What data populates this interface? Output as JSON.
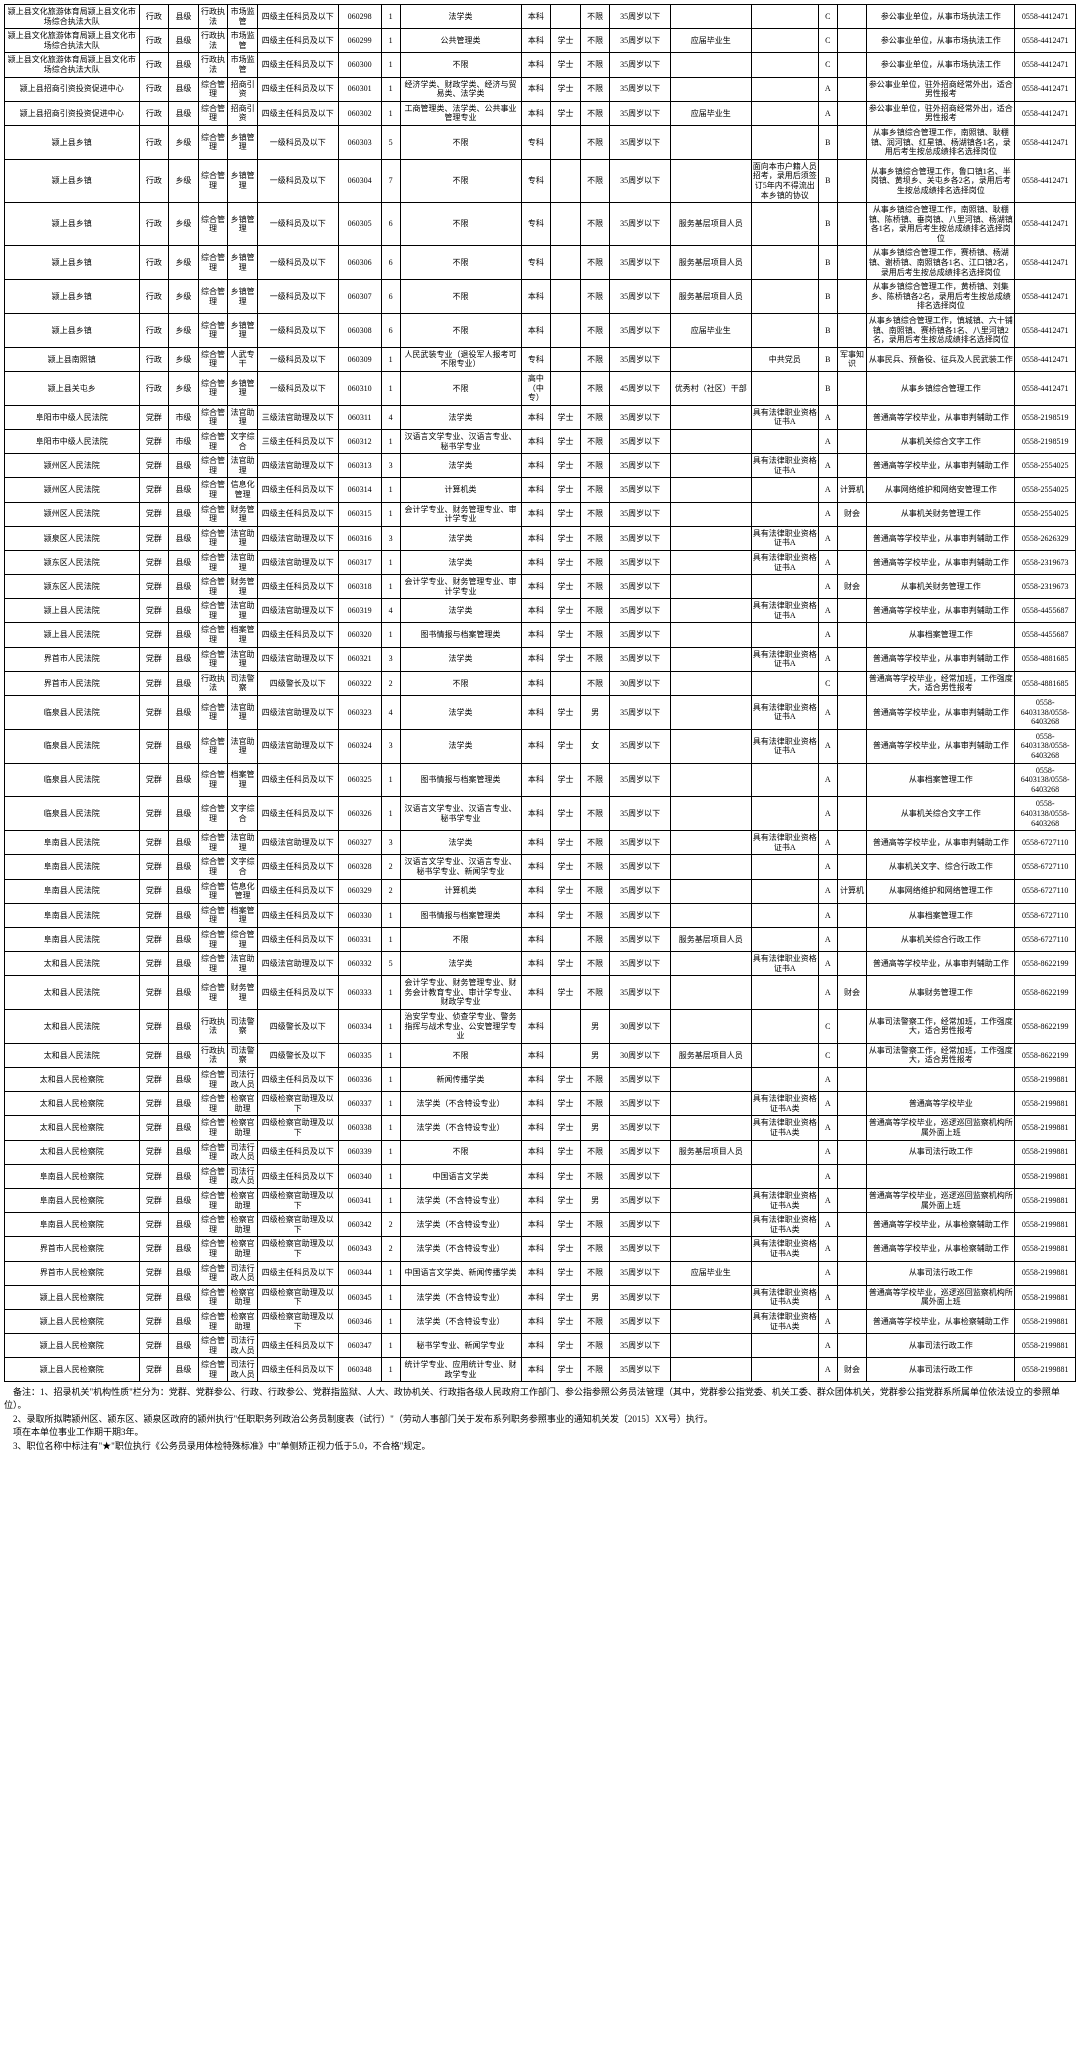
{
  "cols": [
    "c0",
    "c1",
    "c2",
    "c3",
    "c4",
    "c5",
    "c6",
    "c7",
    "c8",
    "c9",
    "c10",
    "c11",
    "c12",
    "c13",
    "c14",
    "c15",
    "c16",
    "c17",
    "c18"
  ],
  "rows": [
    [
      "颍上县文化旅游体育局颍上县文化市场综合执法大队",
      "行政",
      "县级",
      "行政执法",
      "市场监管",
      "四级主任科员及以下",
      "060298",
      "1",
      "法学类",
      "本科",
      "",
      "不限",
      "35周岁以下",
      "",
      "",
      "C",
      "",
      "参公事业单位，从事市场执法工作",
      "0558-4412471"
    ],
    [
      "颍上县文化旅游体育局颍上县文化市场综合执法大队",
      "行政",
      "县级",
      "行政执法",
      "市场监管",
      "四级主任科员及以下",
      "060299",
      "1",
      "公共管理类",
      "本科",
      "学士",
      "不限",
      "35周岁以下",
      "应届毕业生",
      "",
      "C",
      "",
      "参公事业单位，从事市场执法工作",
      "0558-4412471"
    ],
    [
      "颍上县文化旅游体育局颍上县文化市场综合执法大队",
      "行政",
      "县级",
      "行政执法",
      "市场监管",
      "四级主任科员及以下",
      "060300",
      "1",
      "不限",
      "本科",
      "学士",
      "不限",
      "35周岁以下",
      "",
      "",
      "C",
      "",
      "参公事业单位，从事市场执法工作",
      "0558-4412471"
    ],
    [
      "颍上县招商引资投资促进中心",
      "行政",
      "县级",
      "综合管理",
      "招商引资",
      "四级主任科员及以下",
      "060301",
      "1",
      "经济学类、财政学类、经济与贸易类、法学类",
      "本科",
      "学士",
      "不限",
      "35周岁以下",
      "",
      "",
      "A",
      "",
      "参公事业单位，驻外招商经常外出，适合男性报考",
      "0558-4412471"
    ],
    [
      "颍上县招商引资投资促进中心",
      "行政",
      "县级",
      "综合管理",
      "招商引资",
      "四级主任科员及以下",
      "060302",
      "1",
      "工商管理类、法学类、公共事业管理专业",
      "本科",
      "学士",
      "不限",
      "35周岁以下",
      "应届毕业生",
      "",
      "A",
      "",
      "参公事业单位，驻外招商经常外出，适合男性报考",
      "0558-4412471"
    ],
    [
      "颍上县乡镇",
      "行政",
      "乡级",
      "综合管理",
      "乡镇管理",
      "一级科员及以下",
      "060303",
      "5",
      "不限",
      "专科",
      "",
      "不限",
      "35周岁以下",
      "",
      "",
      "B",
      "",
      "从事乡镇综合管理工作，南照镇、耿棚镇、润河镇、红星镇、杨湖镇各1名，录用后考生按总成绩排名选择岗位",
      "0558-4412471"
    ],
    [
      "颍上县乡镇",
      "行政",
      "乡级",
      "综合管理",
      "乡镇管理",
      "一级科员及以下",
      "060304",
      "7",
      "不限",
      "专科",
      "",
      "不限",
      "35周岁以下",
      "",
      "面向本市户籍人员招考，录用后须签订5年内不得流出本乡镇的协议",
      "B",
      "",
      "从事乡镇综合管理工作，鲁口镇1名、半岗镇、黄坝乡、关屯乡各2名，录用后考生按总成绩排名选择岗位",
      "0558-4412471"
    ],
    [
      "颍上县乡镇",
      "行政",
      "乡级",
      "综合管理",
      "乡镇管理",
      "一级科员及以下",
      "060305",
      "6",
      "不限",
      "专科",
      "",
      "不限",
      "35周岁以下",
      "服务基层项目人员",
      "",
      "B",
      "",
      "从事乡镇综合管理工作，南照镇、耿棚镇、陈桥镇、垂岗镇、八里河镇、杨湖镇各1名，录用后考生按总成绩排名选择岗位",
      "0558-4412471"
    ],
    [
      "颍上县乡镇",
      "行政",
      "乡级",
      "综合管理",
      "乡镇管理",
      "一级科员及以下",
      "060306",
      "6",
      "不限",
      "专科",
      "",
      "不限",
      "35周岁以下",
      "服务基层项目人员",
      "",
      "B",
      "",
      "从事乡镇综合管理工作，赛桥镇、杨湖镇、谢桥镇、南照镇各1名、江口镇2名，录用后考生按总成绩排名选择岗位",
      "0558-4412471"
    ],
    [
      "颍上县乡镇",
      "行政",
      "乡级",
      "综合管理",
      "乡镇管理",
      "一级科员及以下",
      "060307",
      "6",
      "不限",
      "本科",
      "",
      "不限",
      "35周岁以下",
      "服务基层项目人员",
      "",
      "B",
      "",
      "从事乡镇综合管理工作，黄桥镇、刘集乡、陈桥镇各2名，录用后考生按总成绩排名选择岗位",
      "0558-4412471"
    ],
    [
      "颍上县乡镇",
      "行政",
      "乡级",
      "综合管理",
      "乡镇管理",
      "一级科员及以下",
      "060308",
      "6",
      "不限",
      "本科",
      "",
      "不限",
      "35周岁以下",
      "应届毕业生",
      "",
      "B",
      "",
      "从事乡镇综合管理工作，慎城镇、六十铺镇、南照镇、赛桥镇各1名、八里河镇2名，录用后考生按总成绩排名选择岗位",
      "0558-4412471"
    ],
    [
      "颍上县南照镇",
      "行政",
      "乡级",
      "综合管理",
      "人武专干",
      "一级科员及以下",
      "060309",
      "1",
      "人民武装专业（退役军人报考可不限专业）",
      "专科",
      "",
      "不限",
      "35周岁以下",
      "",
      "中共党员",
      "B",
      "军事知识",
      "从事民兵、预备役、征兵及人民武装工作",
      "0558-4412471"
    ],
    [
      "颍上县关屯乡",
      "行政",
      "乡级",
      "综合管理",
      "乡镇管理",
      "一级科员及以下",
      "060310",
      "1",
      "不限",
      "高中（中专）",
      "",
      "不限",
      "45周岁以下",
      "优秀村（社区）干部",
      "",
      "B",
      "",
      "从事乡镇综合管理工作",
      "0558-4412471"
    ],
    [
      "阜阳市中级人民法院",
      "党群",
      "市级",
      "综合管理",
      "法官助理",
      "三级法官助理及以下",
      "060311",
      "4",
      "法学类",
      "本科",
      "学士",
      "不限",
      "35周岁以下",
      "",
      "具有法律职业资格证书A",
      "A",
      "",
      "普通高等学校毕业，从事审判辅助工作",
      "0558-2198519"
    ],
    [
      "阜阳市中级人民法院",
      "党群",
      "市级",
      "综合管理",
      "文字综合",
      "三级主任科员及以下",
      "060312",
      "1",
      "汉语言文学专业、汉语言专业、秘书学专业",
      "本科",
      "学士",
      "不限",
      "35周岁以下",
      "",
      "",
      "A",
      "",
      "从事机关综合文字工作",
      "0558-2198519"
    ],
    [
      "颍州区人民法院",
      "党群",
      "县级",
      "综合管理",
      "法官助理",
      "四级法官助理及以下",
      "060313",
      "3",
      "法学类",
      "本科",
      "学士",
      "不限",
      "35周岁以下",
      "",
      "具有法律职业资格证书A",
      "A",
      "",
      "普通高等学校毕业，从事审判辅助工作",
      "0558-2554025"
    ],
    [
      "颍州区人民法院",
      "党群",
      "县级",
      "综合管理",
      "信息化管理",
      "四级主任科员及以下",
      "060314",
      "1",
      "计算机类",
      "本科",
      "学士",
      "不限",
      "35周岁以下",
      "",
      "",
      "A",
      "计算机",
      "从事网络维护和网络安管理工作",
      "0558-2554025"
    ],
    [
      "颍州区人民法院",
      "党群",
      "县级",
      "综合管理",
      "财务管理",
      "四级主任科员及以下",
      "060315",
      "1",
      "会计学专业、财务管理专业、审计学专业",
      "本科",
      "学士",
      "不限",
      "35周岁以下",
      "",
      "",
      "A",
      "财会",
      "从事机关财务管理工作",
      "0558-2554025"
    ],
    [
      "颍泉区人民法院",
      "党群",
      "县级",
      "综合管理",
      "法官助理",
      "四级法官助理及以下",
      "060316",
      "3",
      "法学类",
      "本科",
      "学士",
      "不限",
      "35周岁以下",
      "",
      "具有法律职业资格证书A",
      "A",
      "",
      "普通高等学校毕业，从事审判辅助工作",
      "0558-2626329"
    ],
    [
      "颍东区人民法院",
      "党群",
      "县级",
      "综合管理",
      "法官助理",
      "四级法官助理及以下",
      "060317",
      "1",
      "法学类",
      "本科",
      "学士",
      "不限",
      "35周岁以下",
      "",
      "具有法律职业资格证书A",
      "A",
      "",
      "普通高等学校毕业，从事审判辅助工作",
      "0558-2319673"
    ],
    [
      "颍东区人民法院",
      "党群",
      "县级",
      "综合管理",
      "财务管理",
      "四级主任科员及以下",
      "060318",
      "1",
      "会计学专业、财务管理专业、审计学专业",
      "本科",
      "学士",
      "不限",
      "35周岁以下",
      "",
      "",
      "A",
      "财会",
      "从事机关财务管理工作",
      "0558-2319673"
    ],
    [
      "颍上县人民法院",
      "党群",
      "县级",
      "综合管理",
      "法官助理",
      "四级法官助理及以下",
      "060319",
      "4",
      "法学类",
      "本科",
      "学士",
      "不限",
      "35周岁以下",
      "",
      "具有法律职业资格证书A",
      "A",
      "",
      "普通高等学校毕业，从事审判辅助工作",
      "0558-4455687"
    ],
    [
      "颍上县人民法院",
      "党群",
      "县级",
      "综合管理",
      "档案管理",
      "四级主任科员及以下",
      "060320",
      "1",
      "图书情报与档案管理类",
      "本科",
      "学士",
      "不限",
      "35周岁以下",
      "",
      "",
      "A",
      "",
      "从事档案管理工作",
      "0558-4455687"
    ],
    [
      "界首市人民法院",
      "党群",
      "县级",
      "综合管理",
      "法官助理",
      "四级法官助理及以下",
      "060321",
      "3",
      "法学类",
      "本科",
      "学士",
      "不限",
      "35周岁以下",
      "",
      "具有法律职业资格证书A",
      "A",
      "",
      "普通高等学校毕业，从事审判辅助工作",
      "0558-4881685"
    ],
    [
      "界首市人民法院",
      "党群",
      "县级",
      "行政执法",
      "司法警察",
      "四级警长及以下",
      "060322",
      "2",
      "不限",
      "本科",
      "",
      "不限",
      "30周岁以下",
      "",
      "",
      "C",
      "",
      "普通高等学校毕业，经常加班，工作强度大，适合男性报考",
      "0558-4881685"
    ],
    [
      "临泉县人民法院",
      "党群",
      "县级",
      "综合管理",
      "法官助理",
      "四级法官助理及以下",
      "060323",
      "4",
      "法学类",
      "本科",
      "学士",
      "男",
      "35周岁以下",
      "",
      "具有法律职业资格证书A",
      "A",
      "",
      "普通高等学校毕业，从事审判辅助工作",
      "0558-6403138/0558-6403268"
    ],
    [
      "临泉县人民法院",
      "党群",
      "县级",
      "综合管理",
      "法官助理",
      "四级法官助理及以下",
      "060324",
      "3",
      "法学类",
      "本科",
      "学士",
      "女",
      "35周岁以下",
      "",
      "具有法律职业资格证书A",
      "A",
      "",
      "普通高等学校毕业，从事审判辅助工作",
      "0558-6403138/0558-6403268"
    ],
    [
      "临泉县人民法院",
      "党群",
      "县级",
      "综合管理",
      "档案管理",
      "四级主任科员及以下",
      "060325",
      "1",
      "图书情报与档案管理类",
      "本科",
      "学士",
      "不限",
      "35周岁以下",
      "",
      "",
      "A",
      "",
      "从事档案管理工作",
      "0558-6403138/0558-6403268"
    ],
    [
      "临泉县人民法院",
      "党群",
      "县级",
      "综合管理",
      "文字综合",
      "四级主任科员及以下",
      "060326",
      "1",
      "汉语言文学专业、汉语言专业、秘书学专业",
      "本科",
      "学士",
      "不限",
      "35周岁以下",
      "",
      "",
      "A",
      "",
      "从事机关综合文字工作",
      "0558-6403138/0558-6403268"
    ],
    [
      "阜南县人民法院",
      "党群",
      "县级",
      "综合管理",
      "法官助理",
      "四级法官助理及以下",
      "060327",
      "3",
      "法学类",
      "本科",
      "学士",
      "不限",
      "35周岁以下",
      "",
      "具有法律职业资格证书A",
      "A",
      "",
      "普通高等学校毕业，从事审判辅助工作",
      "0558-6727110"
    ],
    [
      "阜南县人民法院",
      "党群",
      "县级",
      "综合管理",
      "文字综合",
      "四级主任科员及以下",
      "060328",
      "2",
      "汉语言文学专业、汉语言专业、秘书学专业、新闻学专业",
      "本科",
      "学士",
      "不限",
      "35周岁以下",
      "",
      "",
      "A",
      "",
      "从事机关文字、综合行政工作",
      "0558-6727110"
    ],
    [
      "阜南县人民法院",
      "党群",
      "县级",
      "综合管理",
      "信息化管理",
      "四级主任科员及以下",
      "060329",
      "2",
      "计算机类",
      "本科",
      "学士",
      "不限",
      "35周岁以下",
      "",
      "",
      "A",
      "计算机",
      "从事网络维护和网络管理工作",
      "0558-6727110"
    ],
    [
      "阜南县人民法院",
      "党群",
      "县级",
      "综合管理",
      "档案管理",
      "四级主任科员及以下",
      "060330",
      "1",
      "图书情报与档案管理类",
      "本科",
      "学士",
      "不限",
      "35周岁以下",
      "",
      "",
      "A",
      "",
      "从事档案管理工作",
      "0558-6727110"
    ],
    [
      "阜南县人民法院",
      "党群",
      "县级",
      "综合管理",
      "综合管理",
      "四级主任科员及以下",
      "060331",
      "1",
      "不限",
      "本科",
      "",
      "不限",
      "35周岁以下",
      "服务基层项目人员",
      "",
      "A",
      "",
      "从事机关综合行政工作",
      "0558-6727110"
    ],
    [
      "太和县人民法院",
      "党群",
      "县级",
      "综合管理",
      "法官助理",
      "四级法官助理及以下",
      "060332",
      "5",
      "法学类",
      "本科",
      "学士",
      "不限",
      "35周岁以下",
      "",
      "具有法律职业资格证书A",
      "A",
      "",
      "普通高等学校毕业，从事审判辅助工作",
      "0558-8622199"
    ],
    [
      "太和县人民法院",
      "党群",
      "县级",
      "综合管理",
      "财务管理",
      "四级主任科员及以下",
      "060333",
      "1",
      "会计学专业、财务管理专业、财务会计教育专业、审计学专业、财政学专业",
      "本科",
      "学士",
      "不限",
      "35周岁以下",
      "",
      "",
      "A",
      "财会",
      "从事财务管理工作",
      "0558-8622199"
    ],
    [
      "太和县人民法院",
      "党群",
      "县级",
      "行政执法",
      "司法警察",
      "四级警长及以下",
      "060334",
      "1",
      "治安学专业、侦查学专业、警务指挥与战术专业、公安管理学专业",
      "本科",
      "",
      "男",
      "30周岁以下",
      "",
      "",
      "C",
      "",
      "从事司法警察工作，经常加班，工作强度大，适合男性报考",
      "0558-8622199"
    ],
    [
      "太和县人民法院",
      "党群",
      "县级",
      "行政执法",
      "司法警察",
      "四级警长及以下",
      "060335",
      "1",
      "不限",
      "本科",
      "",
      "男",
      "30周岁以下",
      "服务基层项目人员",
      "",
      "C",
      "",
      "从事司法警察工作，经常加班，工作强度大，适合男性报考",
      "0558-8622199"
    ],
    [
      "太和县人民检察院",
      "党群",
      "县级",
      "综合管理",
      "司法行政人员",
      "四级主任科员及以下",
      "060336",
      "1",
      "新闻传播学类",
      "本科",
      "学士",
      "不限",
      "35周岁以下",
      "",
      "",
      "A",
      "",
      "",
      "0558-2199881"
    ],
    [
      "太和县人民检察院",
      "党群",
      "县级",
      "综合管理",
      "检察官助理",
      "四级检察官助理及以下",
      "060337",
      "1",
      "法学类（不含特设专业）",
      "本科",
      "学士",
      "不限",
      "35周岁以下",
      "",
      "具有法律职业资格证书A类",
      "A",
      "",
      "普通高等学校毕业",
      "0558-2199881"
    ],
    [
      "太和县人民检察院",
      "党群",
      "县级",
      "综合管理",
      "检察官助理",
      "四级检察官助理及以下",
      "060338",
      "1",
      "法学类（不含特设专业）",
      "本科",
      "学士",
      "男",
      "35周岁以下",
      "",
      "具有法律职业资格证书A类",
      "A",
      "",
      "普通高等学校毕业，巡逻巡回监察机构所属外面上班",
      "0558-2199881"
    ],
    [
      "太和县人民检察院",
      "党群",
      "县级",
      "综合管理",
      "司法行政人员",
      "四级主任科员及以下",
      "060339",
      "1",
      "不限",
      "本科",
      "学士",
      "不限",
      "35周岁以下",
      "服务基层项目人员",
      "",
      "A",
      "",
      "从事司法行政工作",
      "0558-2199881"
    ],
    [
      "阜南县人民检察院",
      "党群",
      "县级",
      "综合管理",
      "司法行政人员",
      "四级主任科员及以下",
      "060340",
      "1",
      "中国语言文学类",
      "本科",
      "学士",
      "不限",
      "35周岁以下",
      "",
      "",
      "A",
      "",
      "",
      "0558-2199881"
    ],
    [
      "阜南县人民检察院",
      "党群",
      "县级",
      "综合管理",
      "检察官助理",
      "四级检察官助理及以下",
      "060341",
      "1",
      "法学类（不含特设专业）",
      "本科",
      "学士",
      "男",
      "35周岁以下",
      "",
      "具有法律职业资格证书A类",
      "A",
      "",
      "普通高等学校毕业，巡逻巡回监察机构所属外面上班",
      "0558-2199881"
    ],
    [
      "阜南县人民检察院",
      "党群",
      "县级",
      "综合管理",
      "检察官助理",
      "四级检察官助理及以下",
      "060342",
      "2",
      "法学类（不含特设专业）",
      "本科",
      "学士",
      "不限",
      "35周岁以下",
      "",
      "具有法律职业资格证书A类",
      "A",
      "",
      "普通高等学校毕业，从事检察辅助工作",
      "0558-2199881"
    ],
    [
      "界首市人民检察院",
      "党群",
      "县级",
      "综合管理",
      "检察官助理",
      "四级检察官助理及以下",
      "060343",
      "2",
      "法学类（不含特设专业）",
      "本科",
      "学士",
      "不限",
      "35周岁以下",
      "",
      "具有法律职业资格证书A类",
      "A",
      "",
      "普通高等学校毕业，从事检察辅助工作",
      "0558-2199881"
    ],
    [
      "界首市人民检察院",
      "党群",
      "县级",
      "综合管理",
      "司法行政人员",
      "四级主任科员及以下",
      "060344",
      "1",
      "中国语言文学类、新闻传播学类",
      "本科",
      "学士",
      "不限",
      "35周岁以下",
      "应届毕业生",
      "",
      "A",
      "",
      "从事司法行政工作",
      "0558-2199881"
    ],
    [
      "颍上县人民检察院",
      "党群",
      "县级",
      "综合管理",
      "检察官助理",
      "四级检察官助理及以下",
      "060345",
      "1",
      "法学类（不含特设专业）",
      "本科",
      "学士",
      "男",
      "35周岁以下",
      "",
      "具有法律职业资格证书A类",
      "A",
      "",
      "普通高等学校毕业，巡逻巡回监察机构所属外面上班",
      "0558-2199881"
    ],
    [
      "颍上县人民检察院",
      "党群",
      "县级",
      "综合管理",
      "检察官助理",
      "四级检察官助理及以下",
      "060346",
      "1",
      "法学类（不含特设专业）",
      "本科",
      "学士",
      "不限",
      "35周岁以下",
      "",
      "具有法律职业资格证书A类",
      "A",
      "",
      "普通高等学校毕业，从事检察辅助工作",
      "0558-2199881"
    ],
    [
      "颍上县人民检察院",
      "党群",
      "县级",
      "综合管理",
      "司法行政人员",
      "四级主任科员及以下",
      "060347",
      "1",
      "秘书学专业、新闻学专业",
      "本科",
      "学士",
      "不限",
      "35周岁以下",
      "",
      "",
      "A",
      "",
      "从事司法行政工作",
      "0558-2199881"
    ],
    [
      "颍上县人民检察院",
      "党群",
      "县级",
      "综合管理",
      "司法行政人员",
      "四级主任科员及以下",
      "060348",
      "1",
      "统计学专业、应用统计专业、财政学专业",
      "本科",
      "学士",
      "不限",
      "35周岁以下",
      "",
      "",
      "A",
      "财会",
      "从事司法行政工作",
      "0558-2199881"
    ]
  ],
  "notes": [
    "备注：1、招录机关\"机构性质\"栏分为：党群、党群参公、行政、行政参公、党群指监狱、人大、政协机关、行政指各级人民政府工作部门、参公指参照公务员法管理（其中，党群参公指党委、机关工委、群众团体机关，党群参公指党群系所属单位依法设立的参照单位）。",
    "2、录取所拟聘颍州区、颍东区、颍泉区政府的颍州执行\"任职职务列政治公务员制度表（试行）\"（劳动人事部门关于发布系列职务参照事业的通知机关发〔2015〕XX号）执行。",
    "项在本单位事业工作期干期3年。",
    "3、职位名称中标注有\"★\"职位执行《公务员录用体检特殊标准》中\"单侧矫正视力低于5.0，不合格\"规定。"
  ]
}
